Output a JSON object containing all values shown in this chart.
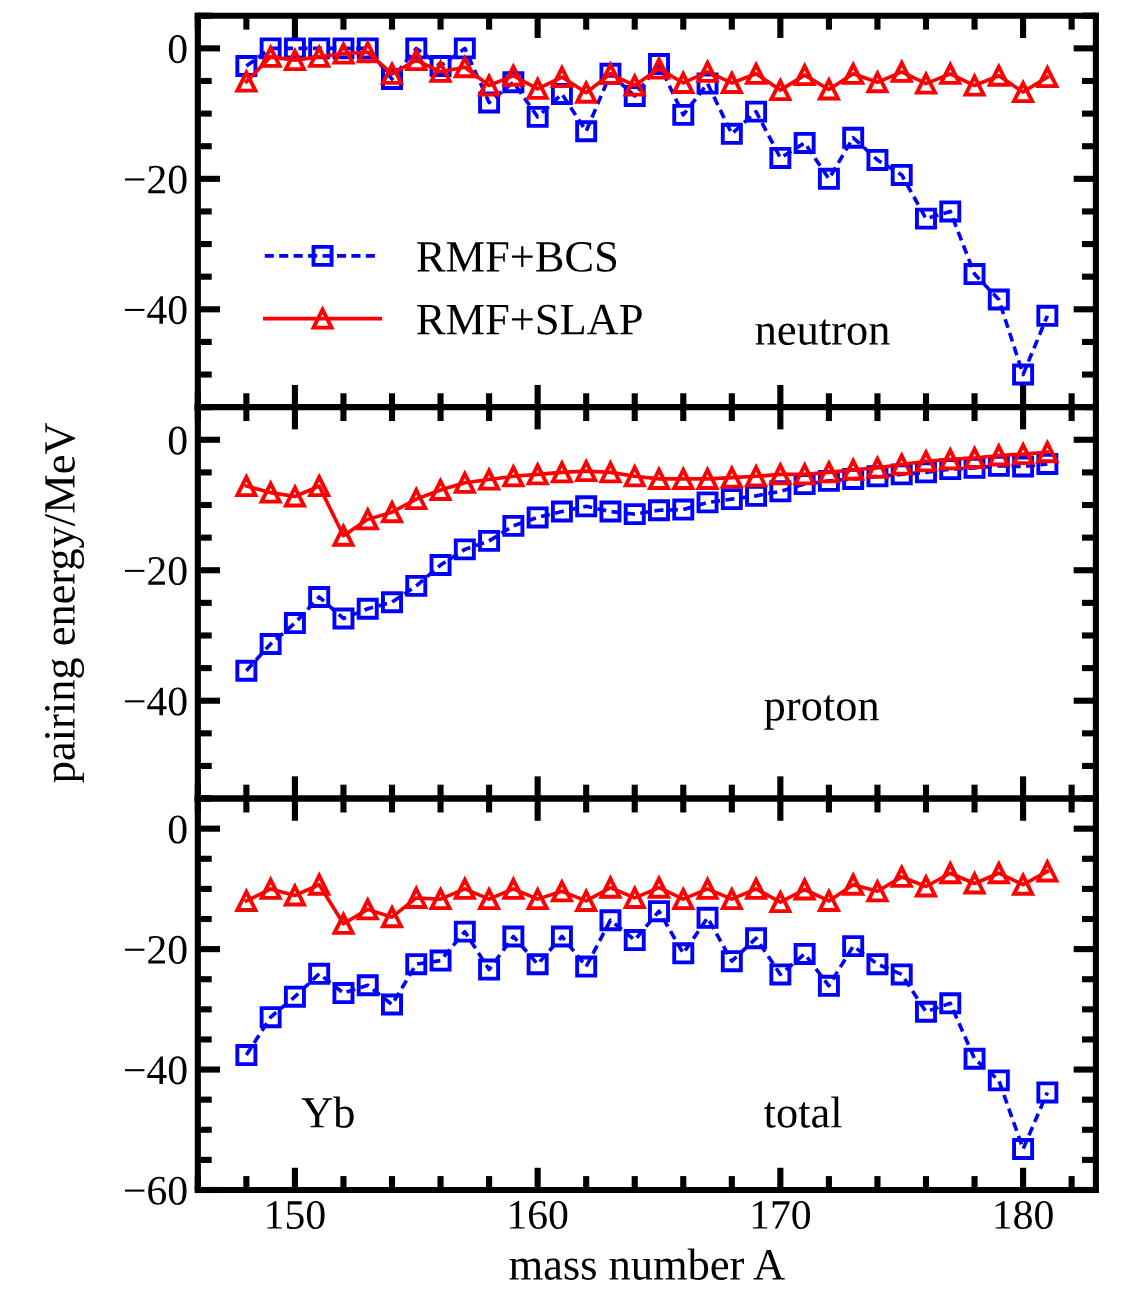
{
  "chart_data": [
    {
      "type": "line",
      "x": [
        148,
        149,
        150,
        151,
        152,
        153,
        154,
        155,
        156,
        157,
        158,
        159,
        160,
        161,
        162,
        163,
        164,
        165,
        166,
        167,
        168,
        169,
        170,
        171,
        172,
        173,
        174,
        175,
        176,
        177,
        178,
        179,
        180,
        181
      ],
      "xlim": [
        146,
        183
      ],
      "xticks": [
        150,
        160,
        170,
        180
      ],
      "ylim": [
        -55,
        5
      ],
      "yticks": [
        0,
        -20,
        -40
      ],
      "tick_labels": "y",
      "legend": "bottom left",
      "annotations": [
        "neutron"
      ],
      "series": [
        {
          "name": "RMF+BCS",
          "color": "#0000ff",
          "marker": "square",
          "line_style": "dashed",
          "values": [
            -2.7,
            0,
            0,
            0,
            0,
            0,
            -4.7,
            0,
            -2.7,
            0,
            -8.3,
            -5.2,
            -10.5,
            -7.0,
            -12.7,
            -3.9,
            -7.3,
            -2.4,
            -10.2,
            -5.4,
            -13.1,
            -9.7,
            -16.8,
            -14.5,
            -20.0,
            -13.7,
            -17.1,
            -19.4,
            -26.1,
            -25.0,
            -34.6,
            -38.5,
            -50.0,
            -41.0
          ]
        },
        {
          "name": "RMF+SLAP",
          "color": "#ff0000",
          "marker": "triangle",
          "line_style": "solid",
          "values": [
            -5.1,
            -1.3,
            -1.8,
            -1.3,
            -0.8,
            -0.6,
            -3.9,
            -1.8,
            -3.6,
            -2.9,
            -5.7,
            -4.2,
            -6.2,
            -4.4,
            -6.8,
            -3.9,
            -5.7,
            -3.1,
            -5.3,
            -3.6,
            -5.3,
            -3.9,
            -6.4,
            -4.1,
            -6.3,
            -3.9,
            -5.2,
            -3.6,
            -5.4,
            -3.9,
            -5.7,
            -4.2,
            -6.7,
            -4.4
          ]
        }
      ]
    },
    {
      "type": "line",
      "x": [
        148,
        149,
        150,
        151,
        152,
        153,
        154,
        155,
        156,
        157,
        158,
        159,
        160,
        161,
        162,
        163,
        164,
        165,
        166,
        167,
        168,
        169,
        170,
        171,
        172,
        173,
        174,
        175,
        176,
        177,
        178,
        179,
        180,
        181
      ],
      "xlim": [
        146,
        183
      ],
      "xticks": [
        150,
        160,
        170,
        180
      ],
      "ylim": [
        -55,
        5
      ],
      "yticks": [
        0,
        -20,
        -40
      ],
      "tick_labels": "y",
      "ylabel": "pairing energy/MeV",
      "annotations": [
        "proton"
      ],
      "series": [
        {
          "color": "#0000ff",
          "marker": "square",
          "line_style": "dashed",
          "values": [
            -35.4,
            -31.3,
            -28.1,
            -24.1,
            -27.4,
            -25.9,
            -24.9,
            -22.4,
            -19.2,
            -16.8,
            -15.5,
            -13.2,
            -11.9,
            -11.0,
            -10.2,
            -11.0,
            -11.4,
            -10.8,
            -10.7,
            -9.6,
            -9.1,
            -8.6,
            -7.9,
            -6.8,
            -6.3,
            -6.0,
            -5.6,
            -5.3,
            -5.0,
            -4.5,
            -4.3,
            -4.0,
            -4.1,
            -3.7
          ]
        },
        {
          "color": "#ff0000",
          "marker": "triangle",
          "line_style": "solid",
          "values": [
            -7.1,
            -8.1,
            -8.7,
            -7.1,
            -14.7,
            -12.2,
            -11.1,
            -9.1,
            -7.7,
            -6.6,
            -6.1,
            -5.6,
            -5.3,
            -5.0,
            -4.8,
            -5.0,
            -5.6,
            -6.0,
            -6.0,
            -6.0,
            -5.8,
            -5.6,
            -5.3,
            -5.3,
            -5.0,
            -4.6,
            -4.3,
            -3.8,
            -3.3,
            -3.0,
            -2.8,
            -2.4,
            -2.2,
            -1.9
          ]
        }
      ]
    },
    {
      "type": "line",
      "x": [
        148,
        149,
        150,
        151,
        152,
        153,
        154,
        155,
        156,
        157,
        158,
        159,
        160,
        161,
        162,
        163,
        164,
        165,
        166,
        167,
        168,
        169,
        170,
        171,
        172,
        173,
        174,
        175,
        176,
        177,
        178,
        179,
        180,
        181
      ],
      "xlim": [
        146,
        183
      ],
      "xticks": [
        150,
        160,
        170,
        180
      ],
      "ylim": [
        -60,
        5
      ],
      "yticks": [
        0,
        -20,
        -40,
        -60
      ],
      "xlabel": "mass number A",
      "annotations": [
        "Yb",
        "total"
      ],
      "series": [
        {
          "color": "#0000ff",
          "marker": "square",
          "line_style": "dashed",
          "values": [
            -37.6,
            -31.3,
            -27.9,
            -24.1,
            -27.3,
            -26.0,
            -29.2,
            -22.5,
            -21.9,
            -17.1,
            -23.4,
            -17.9,
            -22.5,
            -17.9,
            -22.9,
            -15.2,
            -18.5,
            -13.7,
            -20.7,
            -14.8,
            -22.0,
            -18.2,
            -24.2,
            -20.8,
            -26.1,
            -19.5,
            -22.5,
            -24.2,
            -30.4,
            -29.0,
            -38.2,
            -41.8,
            -53.2,
            -43.8
          ]
        },
        {
          "color": "#ff0000",
          "marker": "triangle",
          "line_style": "solid",
          "values": [
            -12.0,
            -10.0,
            -11.1,
            -9.3,
            -15.8,
            -13.4,
            -14.7,
            -11.5,
            -11.7,
            -10.0,
            -11.7,
            -10.0,
            -11.7,
            -10.4,
            -12.0,
            -9.8,
            -11.5,
            -9.8,
            -11.7,
            -10.0,
            -11.7,
            -10.0,
            -12.2,
            -10.1,
            -12.0,
            -9.3,
            -10.4,
            -8.0,
            -9.6,
            -7.4,
            -9.1,
            -7.4,
            -9.3,
            -7.1
          ]
        }
      ]
    }
  ]
}
